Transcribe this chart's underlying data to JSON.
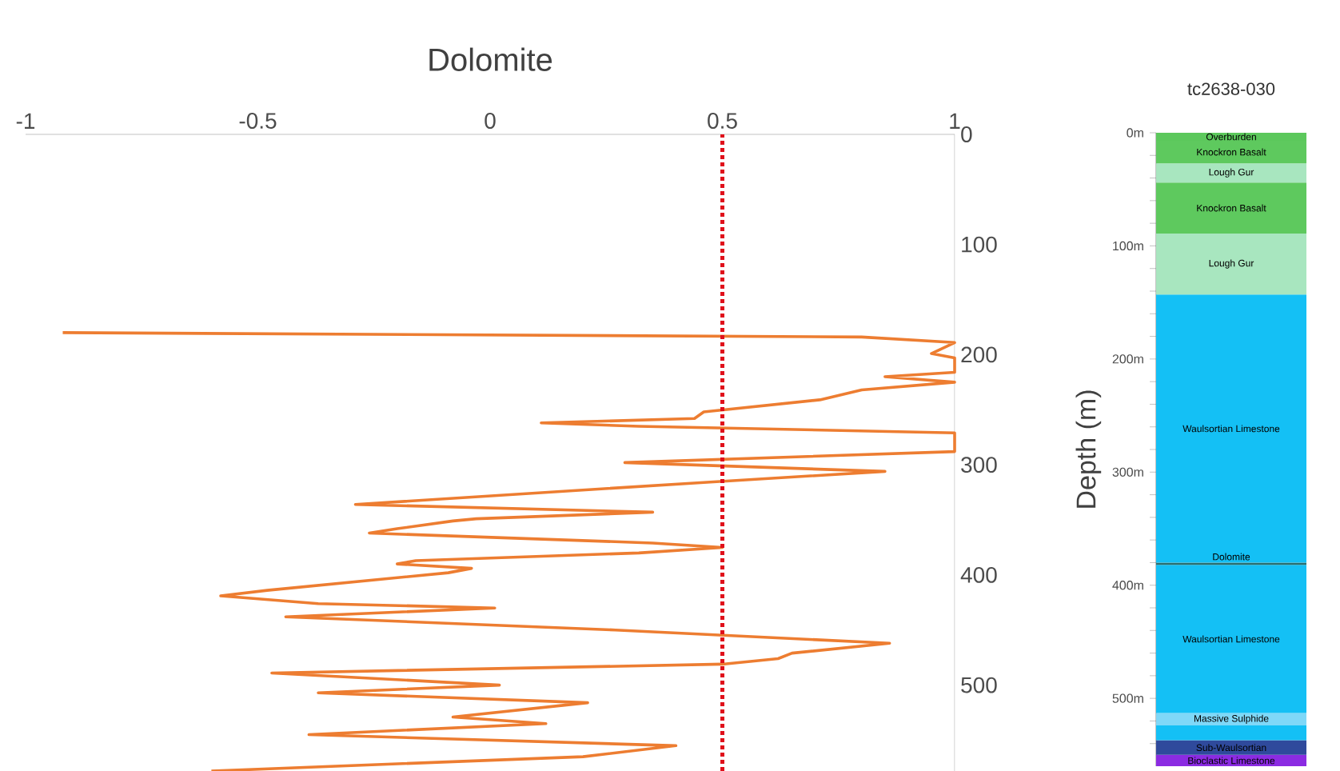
{
  "chart_data": [
    {
      "type": "line",
      "title": "Dolomite",
      "xlim": [
        -1,
        1
      ],
      "xticks": [
        -1,
        -0.5,
        0,
        0.5,
        1
      ],
      "ylim": [
        578,
        0
      ],
      "yticks": [
        0,
        100,
        200,
        300,
        400,
        500
      ],
      "grid": false,
      "ref_lines": [
        {
          "axis": "x",
          "value": 0.5,
          "color": "#e0101b",
          "line_style": "dotted"
        }
      ],
      "series": [
        {
          "color": "#ed7d31",
          "x": [
            -0.92,
            0.8,
            1.0,
            0.95,
            1.0,
            1.0,
            0.85,
            1.0,
            0.8,
            0.71,
            0.46,
            0.44,
            0.11,
            0.32,
            1.0,
            1.0,
            0.29,
            0.85,
            0.46,
            -0.29,
            0.35,
            -0.03,
            -0.08,
            -0.2,
            -0.26,
            0.35,
            0.5,
            0.32,
            -0.16,
            -0.2,
            -0.04,
            -0.09,
            -0.48,
            -0.58,
            -0.37,
            0.01,
            -0.44,
            0.27,
            0.86,
            0.65,
            0.62,
            0.5,
            -0.47,
            0.02,
            -0.37,
            0.21,
            -0.08,
            0.12,
            -0.39,
            0.4,
            0.2,
            -0.6
          ],
          "values": [
            180,
            184,
            189,
            199,
            203,
            216,
            220,
            225,
            232,
            241,
            252,
            258,
            262,
            265,
            271,
            288,
            298,
            306,
            316,
            336,
            343,
            349,
            351,
            358,
            362,
            371,
            375,
            380,
            387,
            390,
            394,
            398,
            414,
            419,
            426,
            430,
            438,
            450,
            462,
            471,
            476,
            481,
            489,
            500,
            507,
            516,
            529,
            535,
            545,
            555,
            565,
            578
          ]
        }
      ]
    },
    {
      "type": "bar",
      "title": "tc2638-030",
      "ylabel": "Depth (m)",
      "stacked": true,
      "categories": [
        null
      ],
      "tick_labels": "y",
      "ylim": [
        560,
        0
      ],
      "yticks": [
        {
          "value": 0,
          "label": "0m"
        },
        {
          "value": 20,
          "label": null
        },
        {
          "value": 40,
          "label": null
        },
        {
          "value": 60,
          "label": null
        },
        {
          "value": 80,
          "label": null
        },
        {
          "value": 100,
          "label": "100m"
        },
        {
          "value": 120,
          "label": null
        },
        {
          "value": 140,
          "label": null
        },
        {
          "value": 160,
          "label": null
        },
        {
          "value": 180,
          "label": null
        },
        {
          "value": 200,
          "label": "200m"
        },
        {
          "value": 220,
          "label": null
        },
        {
          "value": 240,
          "label": null
        },
        {
          "value": 260,
          "label": null
        },
        {
          "value": 280,
          "label": null
        },
        {
          "value": 300,
          "label": "300m"
        },
        {
          "value": 320,
          "label": null
        },
        {
          "value": 340,
          "label": null
        },
        {
          "value": 360,
          "label": null
        },
        {
          "value": 380,
          "label": null
        },
        {
          "value": 400,
          "label": "400m"
        },
        {
          "value": 420,
          "label": null
        },
        {
          "value": 440,
          "label": null
        },
        {
          "value": 460,
          "label": null
        },
        {
          "value": 480,
          "label": null
        },
        {
          "value": 500,
          "label": "500m"
        },
        {
          "value": 520,
          "label": null
        },
        {
          "value": 540,
          "label": null
        }
      ],
      "series": [
        {
          "name": "Overburden",
          "color": "#5cc85c",
          "values": [
            7
          ]
        },
        {
          "name": "Knockron Basalt",
          "color": "#5ec95e",
          "values": [
            20
          ]
        },
        {
          "name": "Lough Gur",
          "color": "#a8e6bf",
          "values": [
            17
          ]
        },
        {
          "name": "Knockron Basalt",
          "color": "#5ec95e",
          "values": [
            45
          ]
        },
        {
          "name": "Lough Gur",
          "color": "#a8e6bf",
          "values": [
            54
          ]
        },
        {
          "name": "Waulsortian Limestone",
          "color": "#14c0f5",
          "values": [
            237
          ]
        },
        {
          "name": "Dolomite",
          "color": "#2a6f6f",
          "values": [
            2
          ]
        },
        {
          "name": "Waulsortian Limestone",
          "color": "#14c0f5",
          "values": [
            131
          ]
        },
        {
          "name": "Massive Sulphide",
          "color": "#7fd8f8",
          "values": [
            11
          ]
        },
        {
          "color": "#14c0f5",
          "values": [
            13
          ]
        },
        {
          "name": "Sub-Waulsortian",
          "color": "#2f4a9c",
          "values": [
            13
          ]
        },
        {
          "name": "Bioclastic Limestone",
          "color": "#8b2be2",
          "values": [
            10
          ]
        }
      ]
    }
  ]
}
